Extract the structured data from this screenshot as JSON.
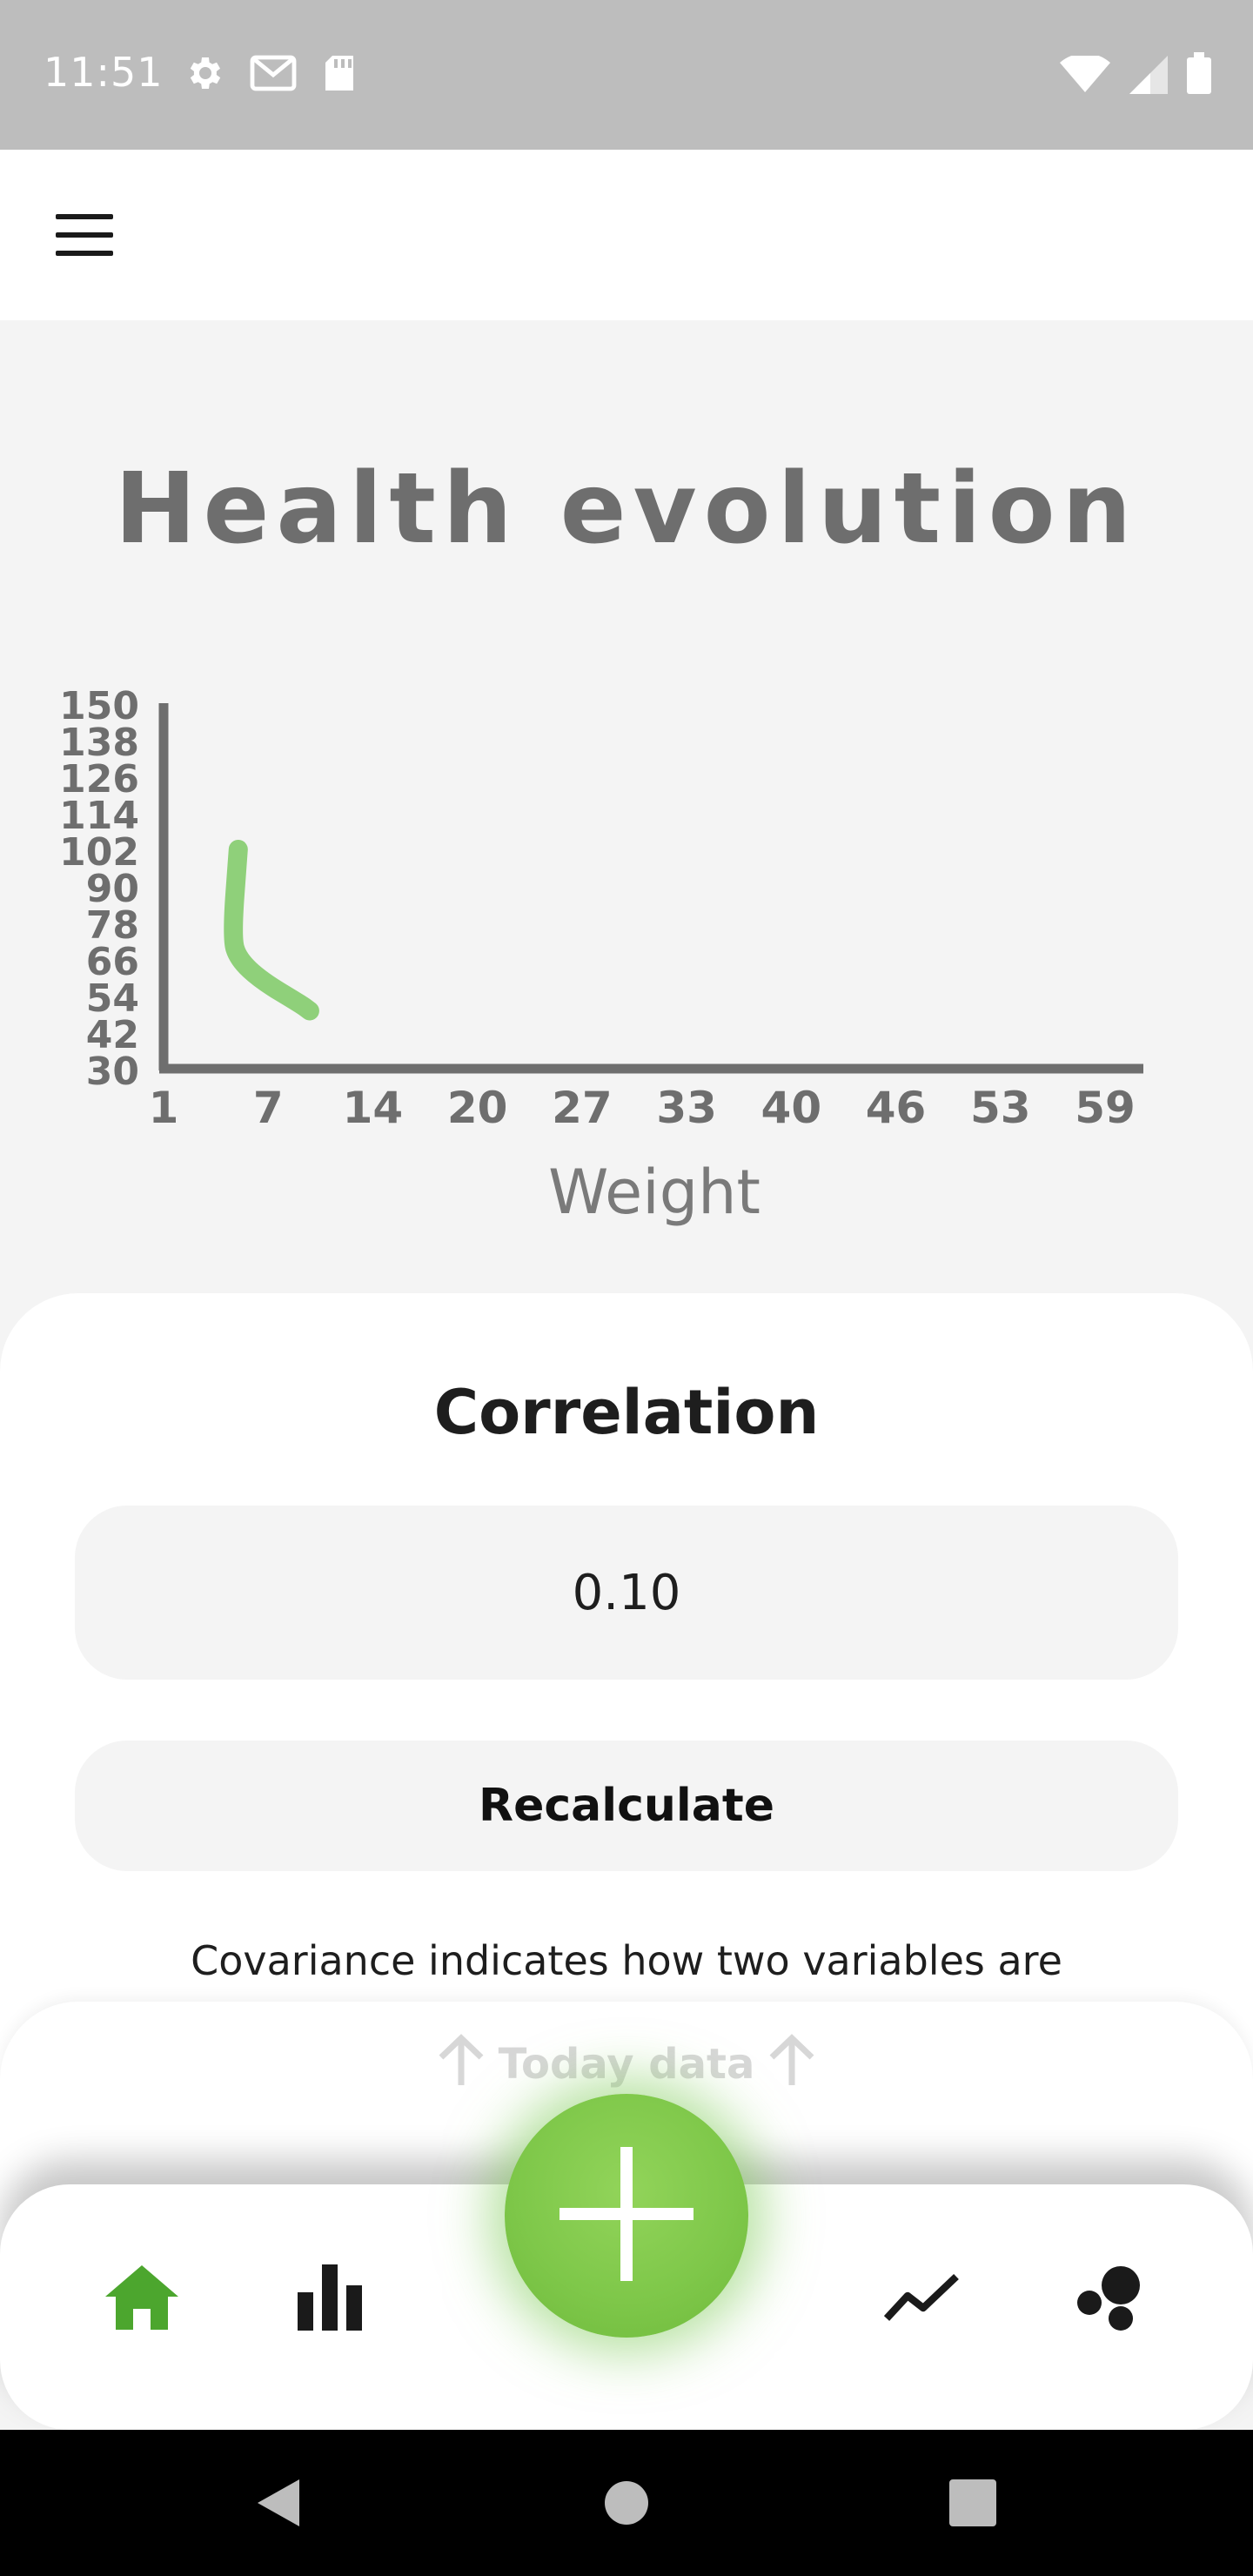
{
  "status_bar": {
    "time": "11:51",
    "left_icons": [
      "gear-icon",
      "gmail-icon",
      "sd-card-icon"
    ],
    "right_icons": [
      "wifi-icon",
      "signal-icon",
      "battery-icon"
    ]
  },
  "app_bar": {
    "menu_icon": "hamburger-menu-icon"
  },
  "page": {
    "title": "Health evolution"
  },
  "chart_data": {
    "type": "line",
    "title": "",
    "xlabel": "Weight",
    "ylabel": "",
    "x_ticks": [
      "1",
      "7",
      "14",
      "20",
      "27",
      "33",
      "40",
      "46",
      "53",
      "59"
    ],
    "y_ticks": [
      "150",
      "138",
      "126",
      "114",
      "102",
      "90",
      "78",
      "66",
      "54",
      "42",
      "30"
    ],
    "xlim": [
      1,
      59
    ],
    "ylim": [
      30,
      150
    ],
    "series": [
      {
        "x": [
          5.6,
          5.2,
          5.6,
          7.0,
          9.5,
          10.0
        ],
        "y": [
          102,
          73,
          66,
          59,
          51,
          49
        ],
        "color": "#8fd07a"
      }
    ],
    "grid": false
  },
  "correlation": {
    "title": "Correlation",
    "value": "0.10",
    "recalculate_label": "Recalculate",
    "description": "Covariance indicates how two variables are"
  },
  "today_panel": {
    "label": "Today data",
    "arrow_icon": "arrow-up-icon"
  },
  "bottom_nav": {
    "items": [
      {
        "icon": "home-icon",
        "active": true
      },
      {
        "icon": "bar-chart-icon",
        "active": false
      },
      {
        "icon": "trend-line-icon",
        "active": false
      },
      {
        "icon": "scatter-dots-icon",
        "active": false
      }
    ],
    "fab_icon": "plus-icon",
    "active_color": "#4ca62e"
  },
  "android_nav": {
    "buttons": [
      "back-icon",
      "home-circle-icon",
      "recents-icon"
    ]
  }
}
